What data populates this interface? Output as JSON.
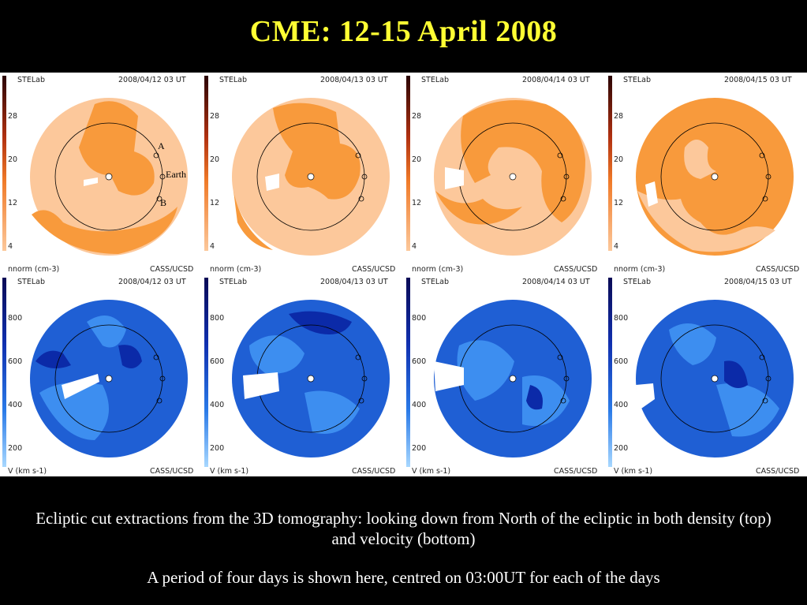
{
  "slide": {
    "title": "CME: 12-15 April 2008",
    "caption_line1": "Ecliptic cut extractions from the 3D tomography: looking down from North of the ecliptic in both density (top) and velocity (bottom)",
    "caption_line2": "A period of four days is shown here, centred on 03:00UT for each of the days"
  },
  "panel_common": {
    "lab": "STELab",
    "credit": "CASS/UCSD"
  },
  "annotations": {
    "a": "A",
    "earth": "Earth",
    "b": "B"
  },
  "density_row": {
    "unit_label": "nnorm (cm-3)",
    "ticks": [
      "28",
      "20",
      "12",
      "4"
    ],
    "colors": {
      "background": "#fcc89b",
      "feature": "#f89a3c",
      "scale_dark": "#3a0a0a",
      "scale_mid": "#c03a10"
    },
    "dates": [
      "2008/04/12 03 UT",
      "2008/04/13 03 UT",
      "2008/04/14 03 UT",
      "2008/04/15 03 UT"
    ]
  },
  "velocity_row": {
    "unit_label": "V (km s-1)",
    "ticks": [
      "800",
      "600",
      "400",
      "200"
    ],
    "colors": {
      "background": "#1f5fd4",
      "light": "#3d8ef0",
      "dark": "#0b2aa8",
      "scale_dark": "#0a0a55",
      "scale_light": "#a8d8ff"
    },
    "dates": [
      "2008/04/12 03 UT",
      "2008/04/13 03 UT",
      "2008/04/14 03 UT",
      "2008/04/15 03 UT"
    ]
  }
}
